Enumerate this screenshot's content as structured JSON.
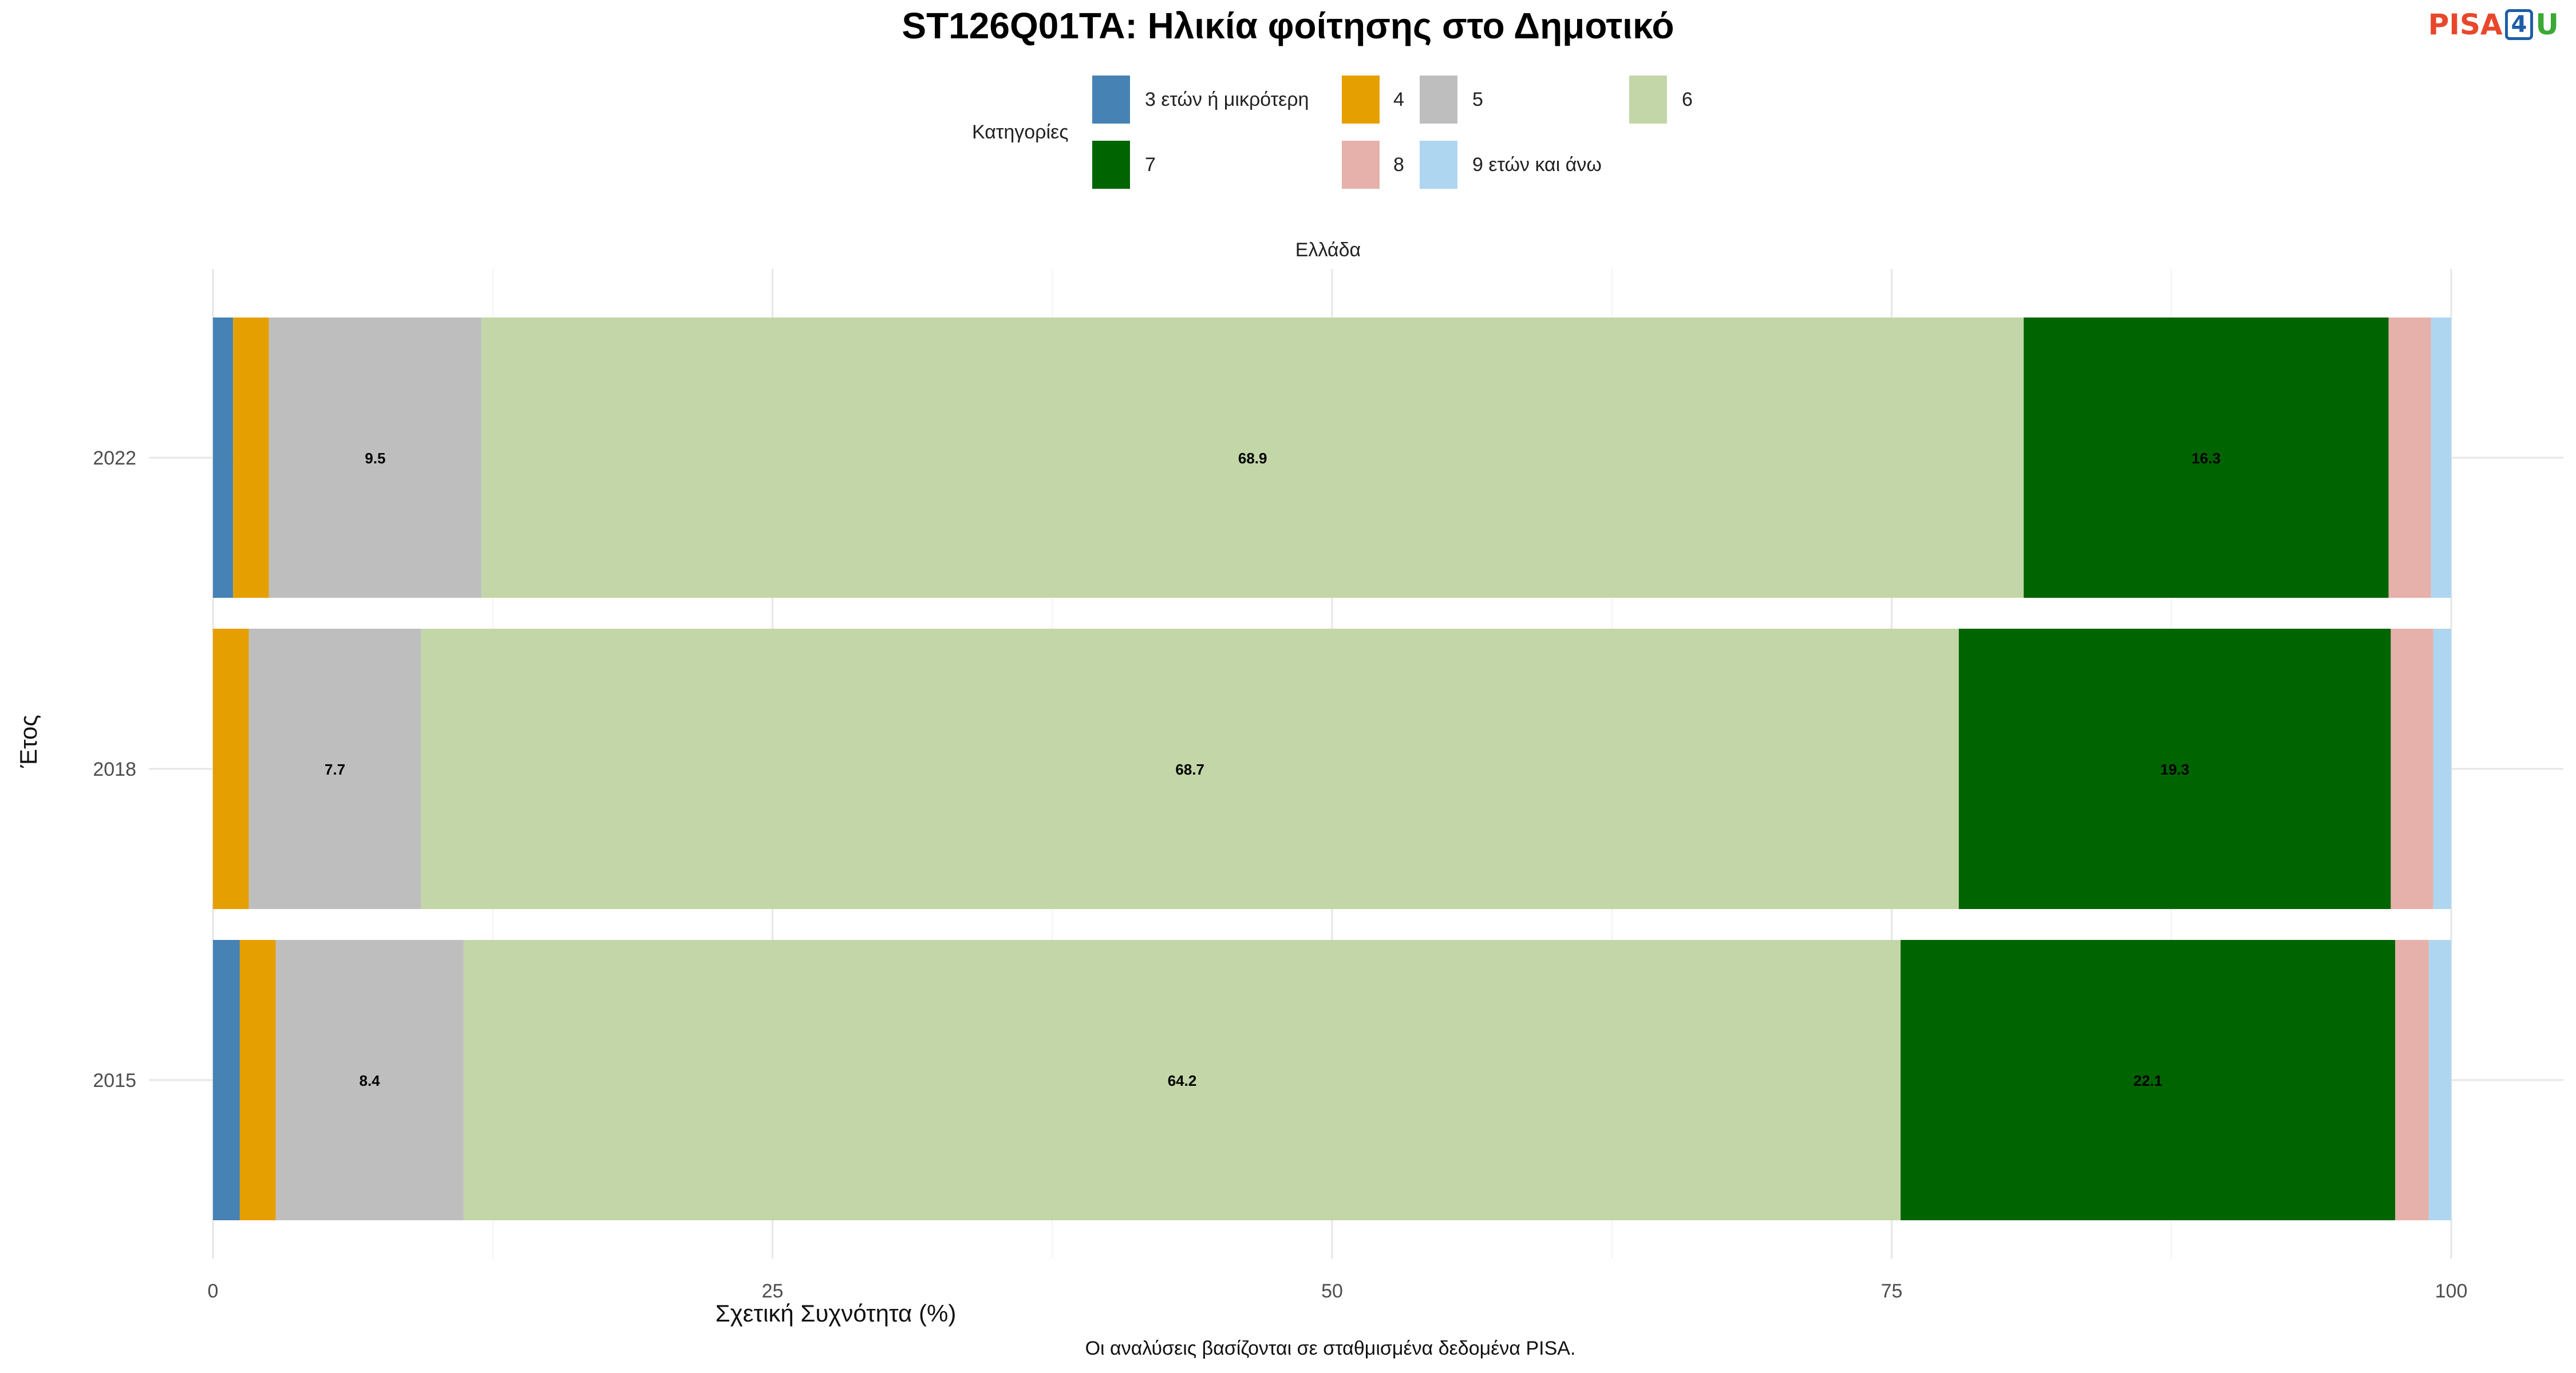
{
  "title": "ST126Q01TA: Ηλικία φοίτησης στο Δημοτικό",
  "logo": {
    "part1": "PISA",
    "part2": "4",
    "part3": "U"
  },
  "legend": {
    "title": "Κατηγορίες",
    "items": [
      {
        "label": "3 ετών ή μικρότερη",
        "color": "#4682b4"
      },
      {
        "label": "4",
        "color": "#e69f00"
      },
      {
        "label": "5",
        "color": "#bebebe"
      },
      {
        "label": "6",
        "color": "#c3d6a7"
      },
      {
        "label": "7",
        "color": "#006400"
      },
      {
        "label": "8",
        "color": "#e5b1aa"
      },
      {
        "label": "9 ετών και άνω",
        "color": "#aed6f1"
      }
    ]
  },
  "facet_label": "Ελλάδα",
  "caption": "Οι αναλύσεις βασίζονται σε σταθμισμένα δεδομένα PISA.",
  "chart_data": {
    "type": "bar",
    "orientation": "horizontal",
    "stacked": true,
    "categories": [
      "2022",
      "2018",
      "2015"
    ],
    "series": [
      {
        "name": "3 ετών ή μικρότερη",
        "values": [
          0.9,
          0.0,
          1.2
        ]
      },
      {
        "name": "4",
        "values": [
          1.6,
          1.6,
          1.6
        ]
      },
      {
        "name": "5",
        "values": [
          9.5,
          7.7,
          8.4
        ]
      },
      {
        "name": "6",
        "values": [
          68.9,
          68.7,
          64.2
        ]
      },
      {
        "name": "7",
        "values": [
          16.3,
          19.3,
          22.1
        ]
      },
      {
        "name": "8",
        "values": [
          1.9,
          1.9,
          1.5
        ]
      },
      {
        "name": "9 ετών και άνω",
        "values": [
          0.9,
          0.8,
          1.0
        ]
      }
    ],
    "data_labels": [
      {
        "category": "2022",
        "series": "5",
        "text": "9.5"
      },
      {
        "category": "2022",
        "series": "6",
        "text": "68.9"
      },
      {
        "category": "2022",
        "series": "7",
        "text": "16.3"
      },
      {
        "category": "2018",
        "series": "5",
        "text": "7.7"
      },
      {
        "category": "2018",
        "series": "6",
        "text": "68.7"
      },
      {
        "category": "2018",
        "series": "7",
        "text": "19.3"
      },
      {
        "category": "2015",
        "series": "5",
        "text": "8.4"
      },
      {
        "category": "2015",
        "series": "6",
        "text": "64.2"
      },
      {
        "category": "2015",
        "series": "7",
        "text": "22.1"
      }
    ],
    "xlabel": "Σχετική Συχνότητα (%)",
    "ylabel": "Έτος",
    "xlim": [
      0,
      100
    ],
    "xticks": [
      0,
      25,
      50,
      75,
      100
    ],
    "grid": true,
    "legend_position": "top"
  }
}
